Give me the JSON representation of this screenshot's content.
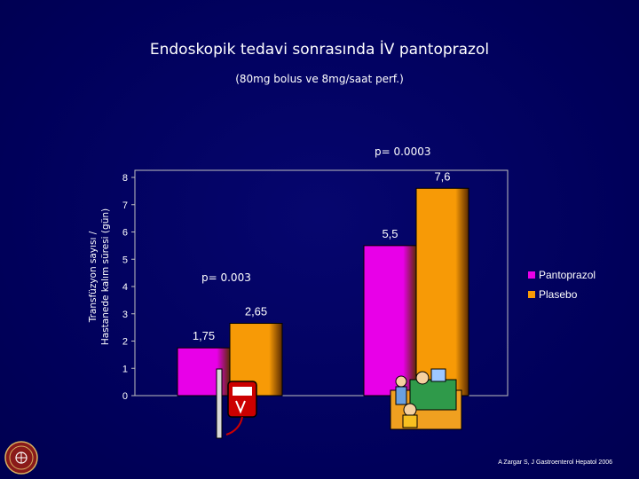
{
  "slide": {
    "title": "Endoskopik tedavi sonrasında İV  pantoprazol",
    "subtitle": "(80mg bolus ve 8mg/saat perf.)",
    "y_axis_label_line1": "Transfüzyon sayısı /",
    "y_axis_label_line2": "Hastanede kalım süresi (gün)",
    "p_value_top": "p= 0.0003",
    "p_value_middle": "p= 0.003",
    "reference": "A Zargar S, J Gastroenterol Hepatol 2006"
  },
  "colors": {
    "background": "#000066",
    "pantoprazol": "#e800e8",
    "plasebo": "#f79a06"
  },
  "chart_data": {
    "type": "bar",
    "categories": [
      "",
      ""
    ],
    "series": [
      {
        "name": "Pantoprazol",
        "values": [
          1.75,
          5.5
        ],
        "labels": [
          "1,75",
          "5,5"
        ],
        "color": "#e800e8"
      },
      {
        "name": "Plasebo",
        "values": [
          2.65,
          7.6
        ],
        "labels": [
          "2,65",
          "7,6"
        ],
        "color": "#f79a06"
      }
    ],
    "title": "",
    "xlabel": "",
    "ylabel": "Transfüzyon sayısı / Hastanede kalım süresi (gün)",
    "ylim": [
      0,
      8
    ],
    "yticks": [
      "0",
      "1",
      "2",
      "3",
      "4",
      "5",
      "6",
      "7",
      "8"
    ],
    "grid": false,
    "legend": "right"
  }
}
